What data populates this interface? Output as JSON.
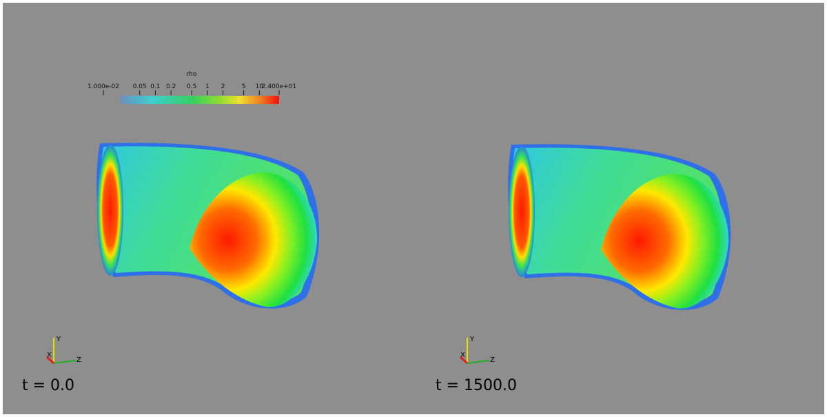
{
  "colorbar": {
    "title": "rho",
    "ticks": [
      {
        "value": 0.01,
        "label": "1.000e-02"
      },
      0.05,
      0.1,
      0.2,
      0.5,
      1,
      2,
      5,
      10,
      {
        "value": 24,
        "label": "2.400e+01"
      }
    ]
  },
  "views": [
    {
      "time_label": "t = 0.0",
      "axes": {
        "x": "X",
        "y": "Y",
        "z": "Z"
      }
    },
    {
      "time_label": "t = 1500.0",
      "axes": {
        "x": "X",
        "y": "Y",
        "z": "Z"
      }
    }
  ]
}
